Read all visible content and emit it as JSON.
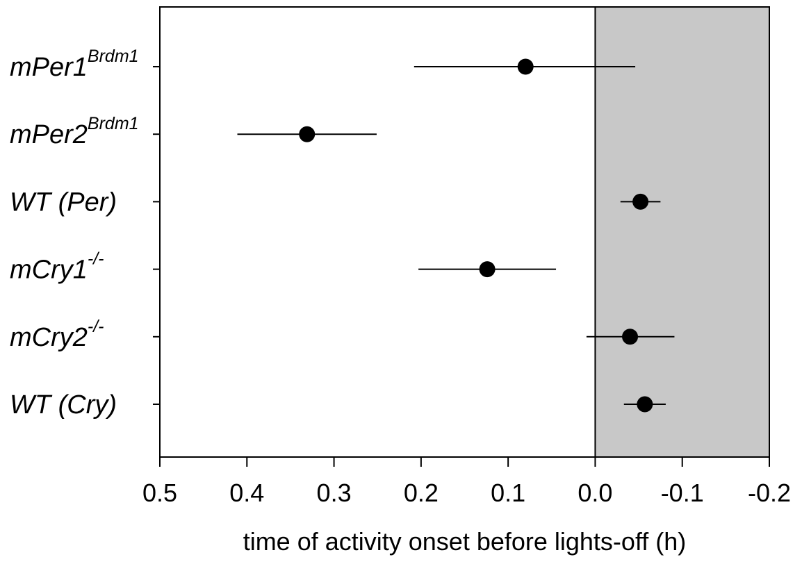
{
  "chart_data": {
    "type": "scatter",
    "title": "",
    "xlabel": "time of activity onset before lights-off (h)",
    "ylabel": "",
    "xlim": [
      0.5,
      -0.2
    ],
    "x_reversed": true,
    "xticks": [
      "0.5",
      "0.4",
      "0.3",
      "0.2",
      "0.1",
      "0.0",
      "-0.1",
      "-0.2"
    ],
    "xtick_values": [
      0.5,
      0.4,
      0.3,
      0.2,
      0.1,
      0.0,
      -0.1,
      -0.2
    ],
    "shaded_region": {
      "from": 0.0,
      "to": -0.2,
      "color": "#c8c8c8"
    },
    "categories": [
      {
        "base": "mPer1",
        "sup": "Brdm1",
        "value": 0.08,
        "err_low": 0.208,
        "err_high": -0.046
      },
      {
        "base": "mPer2",
        "sup": "Brdm1",
        "value": 0.331,
        "err_low": 0.411,
        "err_high": 0.251
      },
      {
        "base": "WT (Per)",
        "sup": "",
        "value": -0.052,
        "err_low": -0.029,
        "err_high": -0.075
      },
      {
        "base": "mCry1",
        "sup": "-/-",
        "value": 0.124,
        "err_low": 0.203,
        "err_high": 0.045
      },
      {
        "base": "mCry2",
        "sup": "-/-",
        "value": -0.04,
        "err_low": 0.01,
        "err_high": -0.091
      },
      {
        "base": "WT (Cry)",
        "sup": "",
        "value": -0.057,
        "err_low": -0.033,
        "err_high": -0.081
      }
    ],
    "marker_color": "#000000",
    "grid": false
  }
}
